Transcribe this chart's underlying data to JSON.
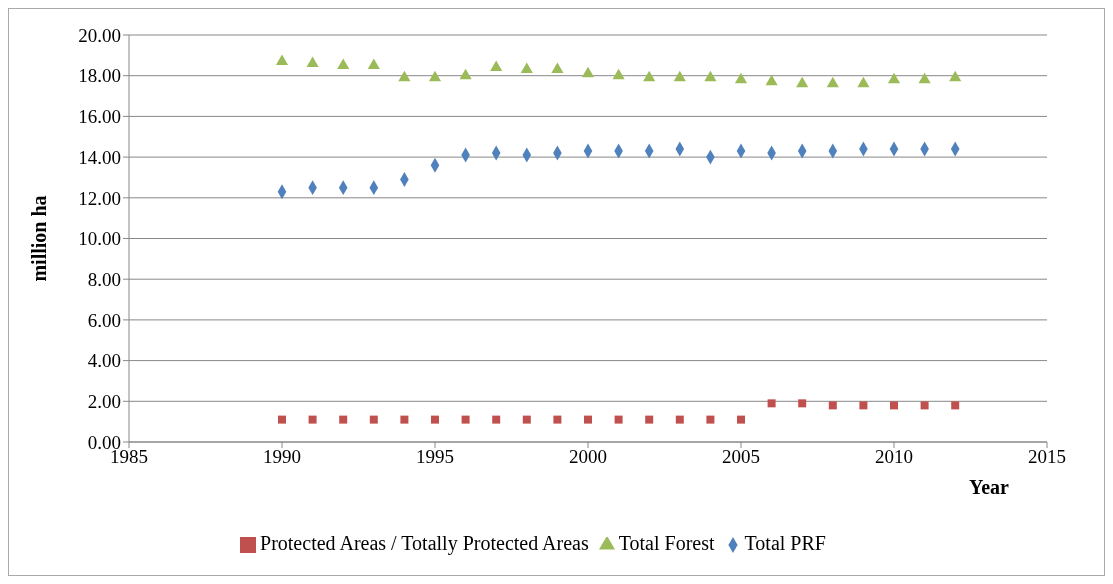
{
  "chart_data": {
    "type": "scatter",
    "xlabel": "Year",
    "ylabel": "million ha",
    "x": [
      1990,
      1991,
      1992,
      1993,
      1994,
      1995,
      1996,
      1997,
      1998,
      1999,
      2000,
      2001,
      2002,
      2003,
      2004,
      2005,
      2006,
      2007,
      2008,
      2009,
      2010,
      2011,
      2012
    ],
    "series": [
      {
        "name": "Total PRF",
        "color": "#4f81bd",
        "marker": "diamond",
        "values": [
          12.3,
          12.5,
          12.5,
          12.5,
          12.9,
          13.6,
          14.1,
          14.2,
          14.1,
          14.2,
          14.3,
          14.3,
          14.3,
          14.4,
          14.0,
          14.3,
          14.2,
          14.3,
          14.3,
          14.4,
          14.4,
          14.4,
          14.4
        ]
      },
      {
        "name": "Protected Areas / Totally Protected Areas",
        "color": "#c0504d",
        "marker": "square",
        "values": [
          1.1,
          1.1,
          1.1,
          1.1,
          1.1,
          1.1,
          1.1,
          1.1,
          1.1,
          1.1,
          1.1,
          1.1,
          1.1,
          1.1,
          1.1,
          1.1,
          1.9,
          1.9,
          1.8,
          1.8,
          1.8,
          1.8,
          1.8
        ]
      },
      {
        "name": "Total Forest",
        "color": "#9bbb59",
        "marker": "triangle",
        "values": [
          18.7,
          18.6,
          18.5,
          18.5,
          17.9,
          17.9,
          18.0,
          18.4,
          18.3,
          18.3,
          18.1,
          18.0,
          17.9,
          17.9,
          17.9,
          17.8,
          17.7,
          17.6,
          17.6,
          17.6,
          17.8,
          17.8,
          17.9
        ]
      }
    ],
    "xlim": [
      1985,
      2015
    ],
    "xticks": [
      1985,
      1990,
      1995,
      2000,
      2005,
      2010,
      2015
    ],
    "ylim": [
      0,
      20
    ],
    "yticks": [
      {
        "value": 0,
        "label": "0.00"
      },
      {
        "value": 2,
        "label": "2.00"
      },
      {
        "value": 4,
        "label": "4.00"
      },
      {
        "value": 6,
        "label": "6.00"
      },
      {
        "value": 8,
        "label": "8.00"
      },
      {
        "value": 10,
        "label": "10.00"
      },
      {
        "value": 12,
        "label": "12.00"
      },
      {
        "value": 14,
        "label": "14.00"
      },
      {
        "value": 16,
        "label": "16.00"
      },
      {
        "value": 18,
        "label": "18.00"
      },
      {
        "value": 20,
        "label": "20.00"
      }
    ],
    "grid": "y",
    "legend": "bottom"
  }
}
